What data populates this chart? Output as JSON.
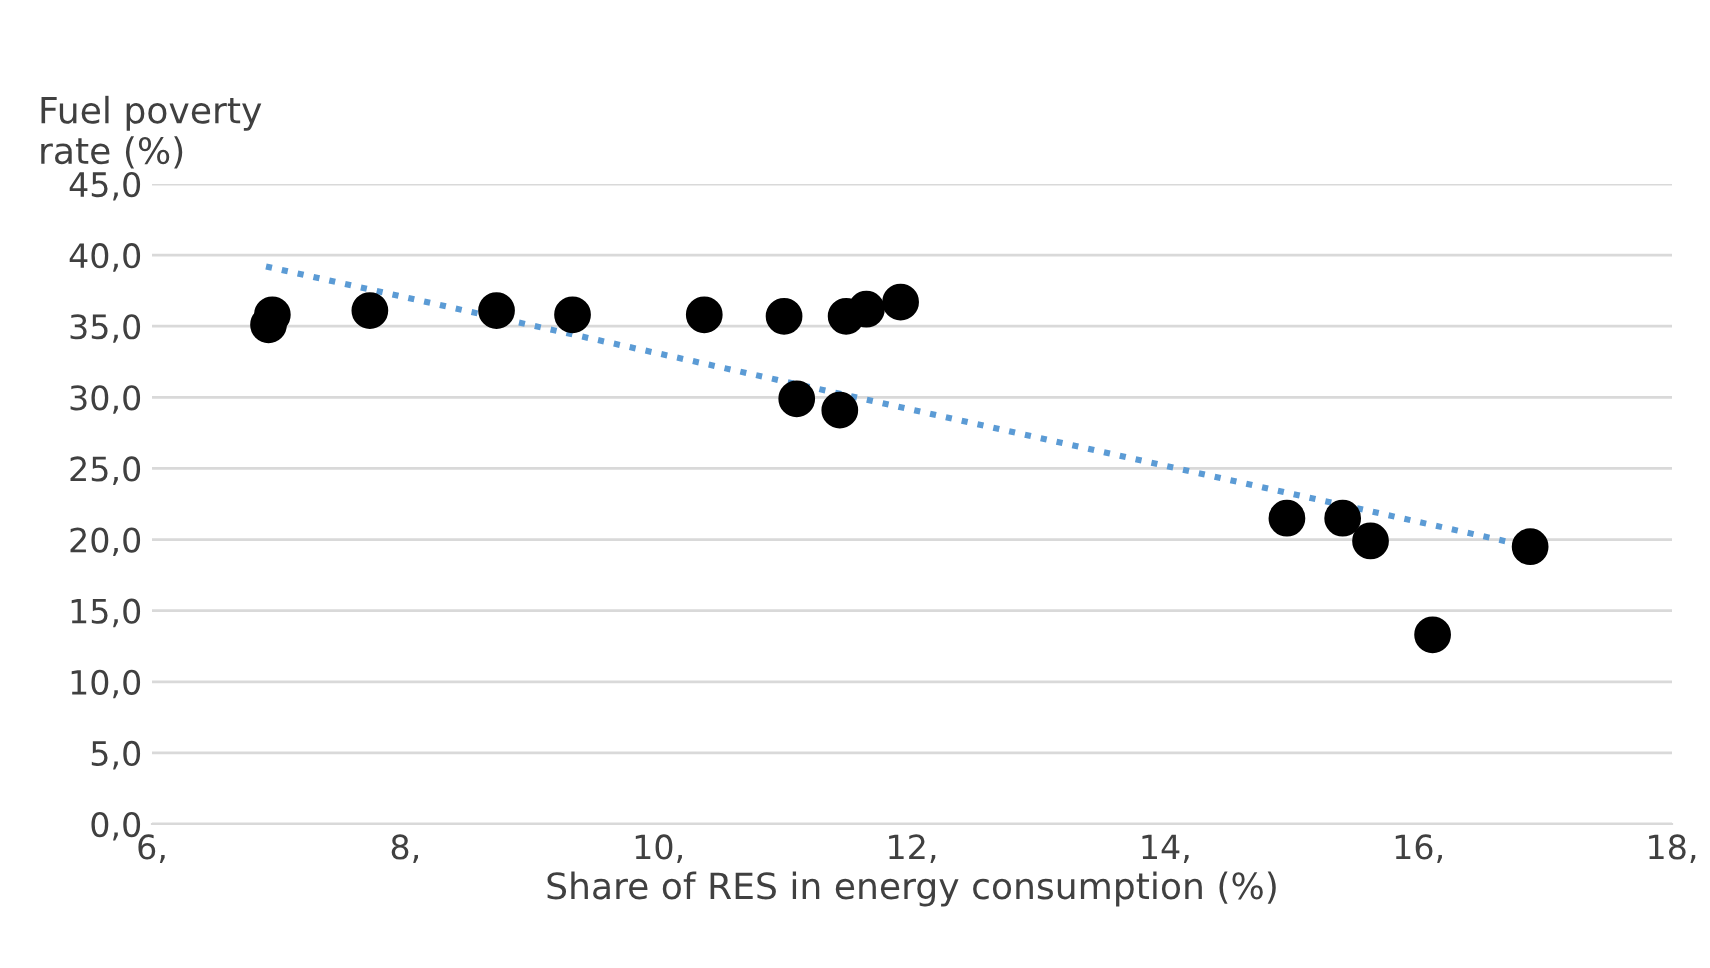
{
  "chart_data": {
    "type": "scatter",
    "ylabel": "Fuel poverty\nrate (%)",
    "xlabel": "Share of RES in energy consumption (%)",
    "xlim": [
      6,
      18
    ],
    "ylim": [
      0,
      45
    ],
    "xticks": [
      {
        "value": 6,
        "label": "6,"
      },
      {
        "value": 8,
        "label": "8,"
      },
      {
        "value": 10,
        "label": "10,"
      },
      {
        "value": 12,
        "label": "12,"
      },
      {
        "value": 14,
        "label": "14,"
      },
      {
        "value": 16,
        "label": "16,"
      },
      {
        "value": 18,
        "label": "18,"
      }
    ],
    "yticks": [
      {
        "value": 0,
        "label": "0,0"
      },
      {
        "value": 5,
        "label": "5,0"
      },
      {
        "value": 10,
        "label": "10,0"
      },
      {
        "value": 15,
        "label": "15,0"
      },
      {
        "value": 20,
        "label": "20,0"
      },
      {
        "value": 25,
        "label": "25,0"
      },
      {
        "value": 30,
        "label": "30,0"
      },
      {
        "value": 35,
        "label": "35,0"
      },
      {
        "value": 40,
        "label": "40,0"
      },
      {
        "value": 45,
        "label": "45,0"
      }
    ],
    "grid": "y",
    "legend": false,
    "series": [
      {
        "color": "#000000",
        "marker": "circle",
        "x": [
          6.92,
          6.95,
          7.72,
          8.72,
          9.32,
          10.36,
          10.99,
          11.09,
          11.43,
          11.48,
          11.64,
          11.91,
          14.96,
          15.4,
          15.62,
          16.11,
          16.88
        ],
        "values": [
          35.1,
          35.8,
          36.1,
          36.1,
          35.8,
          35.8,
          35.7,
          29.9,
          29.1,
          35.7,
          36.2,
          36.7,
          21.5,
          21.5,
          19.9,
          13.3,
          19.5
        ]
      },
      {
        "type": "line",
        "color": "#5b9bd5",
        "line_style": "dotted",
        "marker": "none",
        "x": [
          6.9,
          16.88
        ],
        "values": [
          39.2,
          19.5
        ]
      }
    ]
  }
}
